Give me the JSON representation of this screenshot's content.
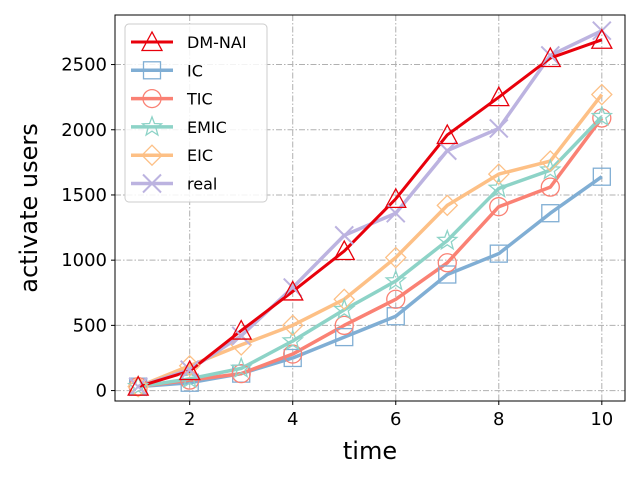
{
  "chart_data": {
    "type": "line",
    "title": "",
    "xlabel": "time",
    "ylabel": "activate users",
    "xlim": [
      0.55,
      10.45
    ],
    "ylim": [
      -80,
      2880
    ],
    "xticks": [
      2,
      4,
      6,
      8,
      10
    ],
    "yticks": [
      0,
      500,
      1000,
      1500,
      2000,
      2500
    ],
    "grid": true,
    "legend_position": "top-left",
    "x": [
      1,
      2,
      3,
      4,
      5,
      6,
      7,
      8,
      9,
      10
    ],
    "series": [
      {
        "name": "DM-NAI",
        "color": "#e8000b",
        "marker": "triangle",
        "values": [
          30,
          150,
          460,
          760,
          1070,
          1470,
          1960,
          2250,
          2550,
          2690
        ]
      },
      {
        "name": "IC",
        "color": "#80aed4",
        "marker": "square",
        "values": [
          30,
          60,
          130,
          250,
          410,
          570,
          890,
          1050,
          1360,
          1640
        ]
      },
      {
        "name": "TIC",
        "color": "#fa8174",
        "marker": "circle",
        "values": [
          30,
          80,
          130,
          280,
          500,
          700,
          980,
          1410,
          1560,
          2090
        ]
      },
      {
        "name": "EMIC",
        "color": "#8dd3c7",
        "marker": "star",
        "values": [
          30,
          90,
          170,
          380,
          620,
          840,
          1150,
          1550,
          1690,
          2100
        ]
      },
      {
        "name": "EIC",
        "color": "#fdc086",
        "marker": "diamond",
        "values": [
          30,
          190,
          350,
          500,
          700,
          1020,
          1420,
          1660,
          1760,
          2270
        ]
      },
      {
        "name": "real",
        "color": "#bcb3e0",
        "marker": "x",
        "values": [
          30,
          160,
          420,
          790,
          1190,
          1360,
          1840,
          2010,
          2570,
          2760
        ]
      }
    ]
  }
}
